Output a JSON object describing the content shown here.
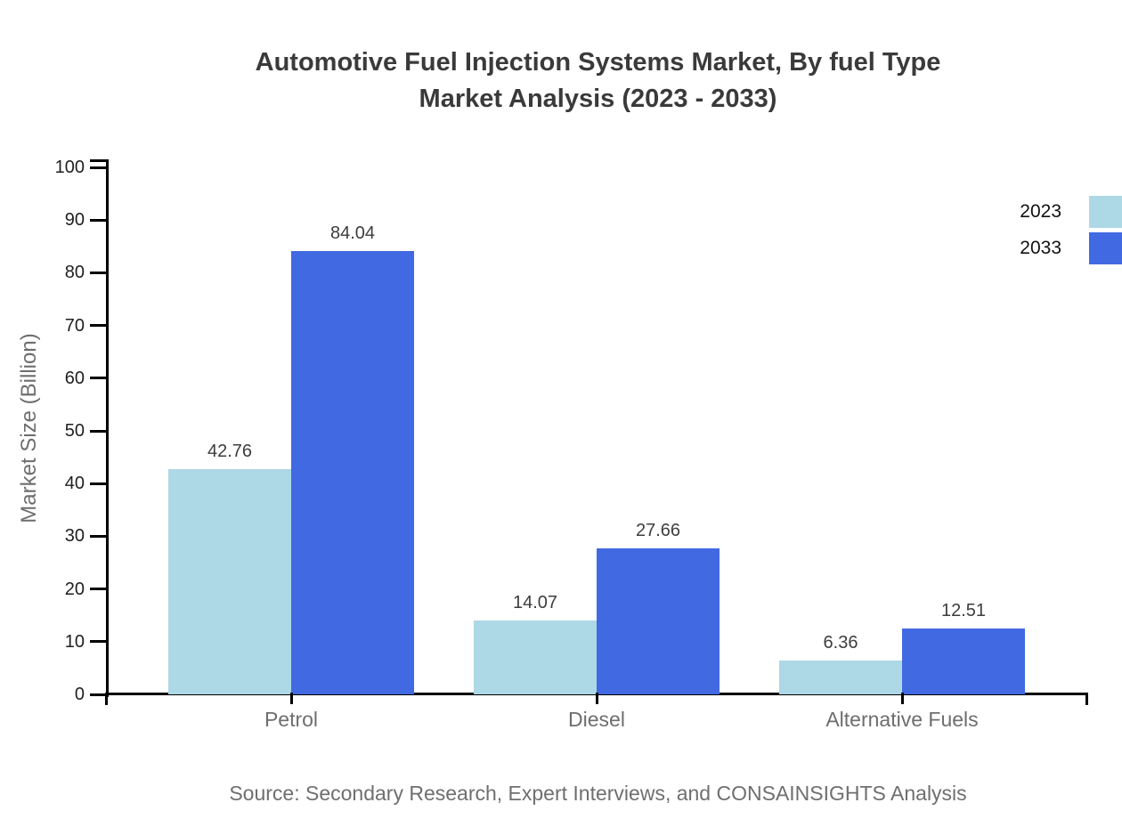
{
  "title": {
    "line1": "Automotive Fuel Injection Systems Market, By fuel Type",
    "line2": "Market Analysis (2023 - 2033)"
  },
  "source": "Source: Secondary Research, Expert Interviews, and CONSAINSIGHTS Analysis",
  "colors": {
    "series_2023": "#ADD8E6",
    "series_2033": "#4169E1",
    "axis": "#000000",
    "title_text": "#3a3a3a",
    "category_text": "#6e6e6e",
    "source_text": "#6f6f6f"
  },
  "chart_data": {
    "type": "bar",
    "title": "Automotive Fuel Injection Systems Market, By fuel Type Market Analysis (2023 - 2033)",
    "categories": [
      "Petrol",
      "Diesel",
      "Alternative Fuels"
    ],
    "series": [
      {
        "name": "2023",
        "color": "#ADD8E6",
        "values": [
          42.76,
          14.07,
          6.36
        ]
      },
      {
        "name": "2033",
        "color": "#4169E1",
        "values": [
          84.04,
          27.66,
          12.51
        ]
      }
    ],
    "xlabel": "",
    "ylabel": "Market Size (Billion)",
    "ylim": [
      0,
      100
    ],
    "ytick_step": 10,
    "ytick_labels": [
      "0",
      "10",
      "20",
      "30",
      "40",
      "50",
      "60",
      "70",
      "80",
      "90",
      "100"
    ],
    "value_labels": true,
    "grid": false,
    "legend_position": "top-right"
  }
}
